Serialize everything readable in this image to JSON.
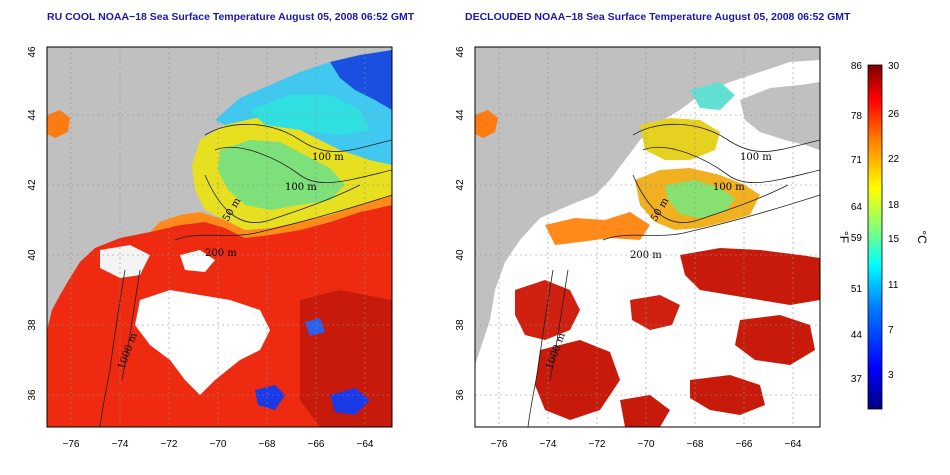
{
  "panels": [
    {
      "id": "left",
      "title": "RU COOL NOAA−18 Sea Surface Temperature August 05, 2008 06:52 GMT",
      "contour_labels": [
        "100 m",
        "100 m",
        "50 m",
        "200 m",
        "1000 m"
      ]
    },
    {
      "id": "right",
      "title": "DECLOUDED NOAA−18 Sea Surface Temperature August 05, 2008 06:52 GMT",
      "contour_labels": [
        "100 m",
        "100 m",
        "50 m",
        "200 m",
        "1000 m"
      ]
    }
  ],
  "axes": {
    "lon_ticks": [
      "−76",
      "−74",
      "−72",
      "−70",
      "−68",
      "−66",
      "−64"
    ],
    "lat_ticks": [
      "46",
      "44",
      "42",
      "40",
      "38",
      "36"
    ]
  },
  "colorbar": {
    "fahrenheit_ticks": [
      "86",
      "78",
      "71",
      "64",
      "59",
      "51",
      "44",
      "37"
    ],
    "celsius_ticks": [
      "30",
      "26",
      "22",
      "18",
      "15",
      "11",
      "7",
      "3"
    ],
    "left_unit": "°F",
    "right_unit": "°C",
    "colors": [
      "#000080",
      "#0000ff",
      "#0080ff",
      "#00ffff",
      "#80ff80",
      "#ffff00",
      "#ff8000",
      "#ff0000",
      "#800000"
    ]
  },
  "colors": {
    "land": "#c0c0c0",
    "cloud_left": "#ffffff",
    "title": "#1a1aa6",
    "grid": "#909090"
  }
}
